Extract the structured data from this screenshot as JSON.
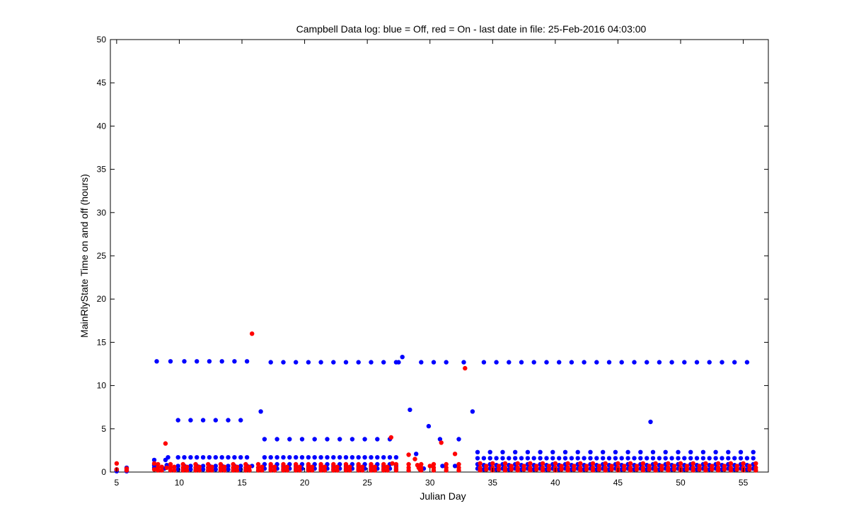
{
  "chart_data": {
    "type": "scatter",
    "title": "Campbell Data log: blue = Off, red = On -  last date in file: 25-Feb-2016 04:03:00",
    "xlabel": "Julian Day",
    "ylabel": "MainRlyState Time on and off (hours)",
    "xlim": [
      4.5,
      57
    ],
    "ylim": [
      0,
      50
    ],
    "xticks": [
      5,
      10,
      15,
      20,
      25,
      30,
      35,
      40,
      45,
      50,
      55
    ],
    "yticks": [
      0,
      5,
      10,
      15,
      20,
      25,
      30,
      35,
      40,
      45,
      50
    ],
    "grid": false,
    "legend": "none",
    "series": [
      {
        "color": "#0000ff",
        "x": [
          5.0,
          5.0,
          5.0,
          5.8,
          5.8,
          5.8,
          8.0,
          8.0,
          8.0,
          8.2,
          8.8,
          8.9,
          9.0,
          9.1,
          9.3,
          15.8,
          16.5,
          27.5,
          27.8,
          28.4,
          28.9,
          29.3,
          29.5,
          29.9,
          30.3,
          30.8,
          31.0,
          31.3,
          32.0,
          32.3,
          32.7,
          33.4,
          47.6
        ],
        "y": [
          0.1,
          0.3,
          0.2,
          0.2,
          0.5,
          0.1,
          0.5,
          1.4,
          0.8,
          12.8,
          0.4,
          1.4,
          0.8,
          1.7,
          12.8,
          0.7,
          7.0,
          12.7,
          13.3,
          7.2,
          2.1,
          12.7,
          0.4,
          5.3,
          12.7,
          3.8,
          0.7,
          12.7,
          0.7,
          3.8,
          12.7,
          7.0,
          5.8
        ],
        "groups": [
          {
            "x_start": 9.9,
            "x_end": 14.9,
            "count": 6,
            "ys": [
              6.0,
              1.7,
              0.7,
              0.3
            ]
          },
          {
            "x_start": 10.4,
            "x_end": 15.4,
            "count": 6,
            "ys": [
              12.8,
              1.7,
              0.7,
              0.3
            ]
          },
          {
            "x_start": 16.8,
            "x_end": 26.8,
            "count": 11,
            "ys": [
              3.8,
              1.7,
              0.9,
              0.4
            ]
          },
          {
            "x_start": 17.3,
            "x_end": 27.3,
            "count": 11,
            "ys": [
              12.7,
              1.7,
              0.7,
              0.3
            ]
          },
          {
            "x_start": 33.8,
            "x_end": 55.8,
            "count": 23,
            "ys": [
              2.3,
              1.6,
              0.9,
              0.4
            ]
          },
          {
            "x_start": 34.3,
            "x_end": 55.3,
            "count": 22,
            "ys": [
              12.7,
              1.6,
              0.8,
              0.3
            ]
          }
        ]
      },
      {
        "color": "#ff0000",
        "x": [
          5.0,
          5.0,
          5.8,
          5.8,
          8.0,
          8.0,
          8.9,
          9.0,
          15.8,
          26.9,
          27.0,
          28.3,
          28.8,
          29.0,
          29.1,
          29.2,
          30.0,
          30.9,
          32.0,
          32.8
        ],
        "y": [
          1.0,
          0.3,
          0.4,
          0.2,
          1.0,
          0.3,
          3.3,
          0.5,
          16.0,
          4.0,
          1.0,
          2.0,
          1.5,
          0.8,
          0.5,
          0.3,
          0.7,
          3.4,
          2.1,
          12.0
        ],
        "groups": [
          {
            "x_start": 8.3,
            "x_end": 32.3,
            "count": 25,
            "ys": [
              0.9,
              0.5,
              0.2
            ]
          },
          {
            "x_start": 8.6,
            "x_end": 26.6,
            "count": 19,
            "ys": [
              0.6,
              0.2
            ]
          },
          {
            "x_start": 34.0,
            "x_end": 56.0,
            "count": 23,
            "ys": [
              1.0,
              0.5,
              0.2
            ]
          },
          {
            "x_start": 34.5,
            "x_end": 55.5,
            "count": 22,
            "ys": [
              0.7,
              0.3
            ]
          }
        ]
      }
    ]
  }
}
